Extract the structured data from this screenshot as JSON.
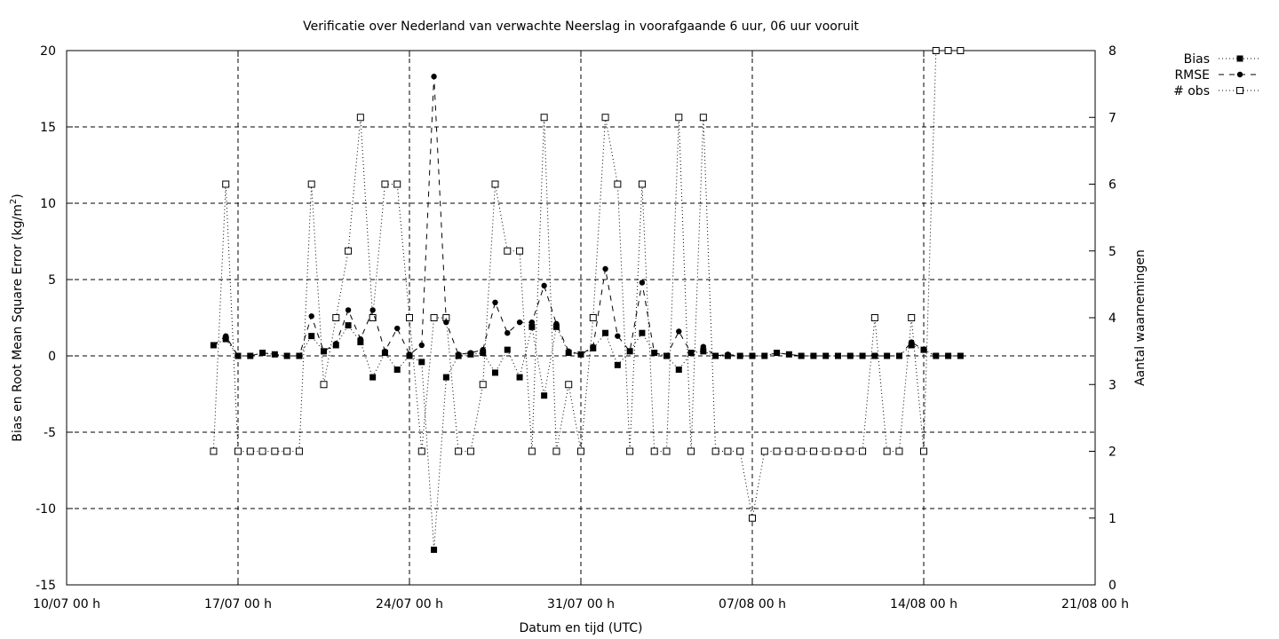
{
  "chart_data": {
    "type": "line",
    "title": "Verificatie over Nederland van verwachte Neerslag in voorafgaande 6 uur, 06 uur vooruit",
    "xlabel": "Datum en tijd (UTC)",
    "ylabel_main": "Bias en Root Mean Square Error (kg/m",
    "ylabel_sup": "2",
    "ylabel_close": ")",
    "y2label": "Aantal waarnemingen",
    "xlim_days": [
      0,
      42
    ],
    "ylim": [
      -15,
      20
    ],
    "y2lim": [
      0,
      8
    ],
    "x_ticks": [
      {
        "day": 0,
        "label": "10/07 00 h"
      },
      {
        "day": 7,
        "label": "17/07 00 h"
      },
      {
        "day": 14,
        "label": "24/07 00 h"
      },
      {
        "day": 21,
        "label": "31/07 00 h"
      },
      {
        "day": 28,
        "label": "07/08 00 h"
      },
      {
        "day": 35,
        "label": "14/08 00 h"
      },
      {
        "day": 42,
        "label": "21/08 00 h"
      }
    ],
    "y_ticks": [
      -15,
      -10,
      -5,
      0,
      5,
      10,
      15,
      20
    ],
    "y2_ticks": [
      0,
      1,
      2,
      3,
      4,
      5,
      6,
      7,
      8
    ],
    "grid": true,
    "legend_position": "outside-top-right",
    "x_start_day": 6,
    "x_step_days": 0.5,
    "series": [
      {
        "name": "Bias",
        "marker": "filled-square",
        "line": "dotted",
        "axis": "y",
        "values": [
          0.7,
          1.1,
          0.0,
          0.0,
          0.2,
          0.1,
          0.0,
          0.0,
          1.3,
          0.3,
          0.7,
          2.0,
          0.9,
          -1.4,
          0.2,
          -0.9,
          0.0,
          -0.4,
          -12.7,
          -1.4,
          0.0,
          0.1,
          0.2,
          -1.1,
          0.4,
          -1.4,
          1.9,
          -2.6,
          1.9,
          0.2,
          0.1,
          0.5,
          1.5,
          -0.6,
          0.3,
          1.5,
          0.2,
          0.0,
          -0.9,
          0.2,
          0.3,
          0.0,
          0.0,
          0.0,
          0.0,
          0.0,
          0.2,
          0.1,
          0.0,
          0.0,
          0.0,
          0.0,
          0.0,
          0.0,
          0.0,
          0.0,
          0.0,
          0.7,
          0.4,
          0.0,
          0.0,
          0.0
        ]
      },
      {
        "name": "RMSE",
        "marker": "filled-circle",
        "line": "dashed",
        "axis": "y",
        "values": [
          0.7,
          1.3,
          0.0,
          0.0,
          0.2,
          0.1,
          0.0,
          0.0,
          2.6,
          0.3,
          0.8,
          3.0,
          1.1,
          3.0,
          0.3,
          1.8,
          0.1,
          0.7,
          18.3,
          2.2,
          0.1,
          0.2,
          0.4,
          3.5,
          1.5,
          2.2,
          2.2,
          4.6,
          2.1,
          0.3,
          0.1,
          0.6,
          5.7,
          1.3,
          0.3,
          4.8,
          0.2,
          0.0,
          1.6,
          0.2,
          0.6,
          0.0,
          0.1,
          0.0,
          0.0,
          0.0,
          0.2,
          0.1,
          0.0,
          0.0,
          0.0,
          0.0,
          0.0,
          0.0,
          0.0,
          0.0,
          0.0,
          0.9,
          0.4,
          0.0,
          0.0,
          0.0
        ]
      },
      {
        "name": "# obs",
        "marker": "open-square",
        "line": "dotted",
        "axis": "y2",
        "values": [
          2,
          6,
          2,
          2,
          2,
          2,
          2,
          2,
          6,
          3,
          4,
          5,
          7,
          4,
          6,
          6,
          4,
          2,
          4,
          4,
          2,
          2,
          3,
          6,
          5,
          5,
          2,
          7,
          2,
          3,
          2,
          4,
          7,
          6,
          2,
          6,
          2,
          2,
          7,
          2,
          7,
          2,
          2,
          2,
          1,
          2,
          2,
          2,
          2,
          2,
          2,
          2,
          2,
          2,
          4,
          2,
          2,
          4,
          2,
          8,
          8,
          8
        ]
      }
    ]
  }
}
